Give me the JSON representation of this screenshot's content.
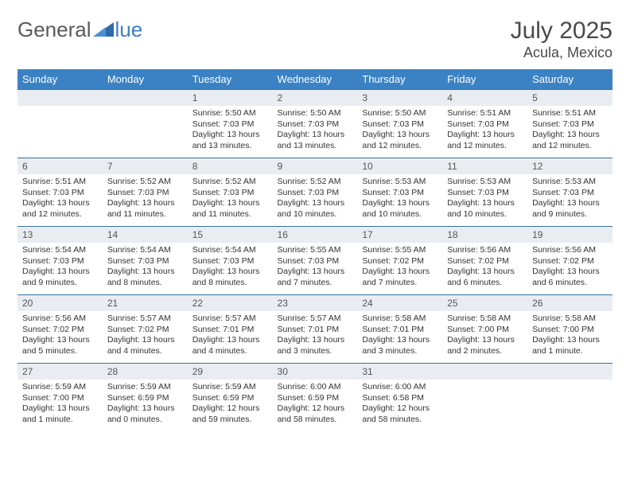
{
  "logo": {
    "text_general": "General",
    "text_blue": "lue"
  },
  "header": {
    "title": "July 2025",
    "location": "Acula, Mexico"
  },
  "colors": {
    "header_bg": "#3b82c4",
    "header_text": "#ffffff",
    "row_border": "#3b6fa0",
    "daynum_bg": "#e9edf1",
    "body_text": "#333333",
    "logo_gray": "#5a5a5a",
    "logo_blue": "#3b7fc4"
  },
  "calendar": {
    "day_labels": [
      "Sunday",
      "Monday",
      "Tuesday",
      "Wednesday",
      "Thursday",
      "Friday",
      "Saturday"
    ],
    "weeks": [
      [
        null,
        null,
        {
          "n": "1",
          "sr": "5:50 AM",
          "ss": "7:03 PM",
          "dl": "13 hours and 13 minutes."
        },
        {
          "n": "2",
          "sr": "5:50 AM",
          "ss": "7:03 PM",
          "dl": "13 hours and 13 minutes."
        },
        {
          "n": "3",
          "sr": "5:50 AM",
          "ss": "7:03 PM",
          "dl": "13 hours and 12 minutes."
        },
        {
          "n": "4",
          "sr": "5:51 AM",
          "ss": "7:03 PM",
          "dl": "13 hours and 12 minutes."
        },
        {
          "n": "5",
          "sr": "5:51 AM",
          "ss": "7:03 PM",
          "dl": "13 hours and 12 minutes."
        }
      ],
      [
        {
          "n": "6",
          "sr": "5:51 AM",
          "ss": "7:03 PM",
          "dl": "13 hours and 12 minutes."
        },
        {
          "n": "7",
          "sr": "5:52 AM",
          "ss": "7:03 PM",
          "dl": "13 hours and 11 minutes."
        },
        {
          "n": "8",
          "sr": "5:52 AM",
          "ss": "7:03 PM",
          "dl": "13 hours and 11 minutes."
        },
        {
          "n": "9",
          "sr": "5:52 AM",
          "ss": "7:03 PM",
          "dl": "13 hours and 10 minutes."
        },
        {
          "n": "10",
          "sr": "5:53 AM",
          "ss": "7:03 PM",
          "dl": "13 hours and 10 minutes."
        },
        {
          "n": "11",
          "sr": "5:53 AM",
          "ss": "7:03 PM",
          "dl": "13 hours and 10 minutes."
        },
        {
          "n": "12",
          "sr": "5:53 AM",
          "ss": "7:03 PM",
          "dl": "13 hours and 9 minutes."
        }
      ],
      [
        {
          "n": "13",
          "sr": "5:54 AM",
          "ss": "7:03 PM",
          "dl": "13 hours and 9 minutes."
        },
        {
          "n": "14",
          "sr": "5:54 AM",
          "ss": "7:03 PM",
          "dl": "13 hours and 8 minutes."
        },
        {
          "n": "15",
          "sr": "5:54 AM",
          "ss": "7:03 PM",
          "dl": "13 hours and 8 minutes."
        },
        {
          "n": "16",
          "sr": "5:55 AM",
          "ss": "7:03 PM",
          "dl": "13 hours and 7 minutes."
        },
        {
          "n": "17",
          "sr": "5:55 AM",
          "ss": "7:02 PM",
          "dl": "13 hours and 7 minutes."
        },
        {
          "n": "18",
          "sr": "5:56 AM",
          "ss": "7:02 PM",
          "dl": "13 hours and 6 minutes."
        },
        {
          "n": "19",
          "sr": "5:56 AM",
          "ss": "7:02 PM",
          "dl": "13 hours and 6 minutes."
        }
      ],
      [
        {
          "n": "20",
          "sr": "5:56 AM",
          "ss": "7:02 PM",
          "dl": "13 hours and 5 minutes."
        },
        {
          "n": "21",
          "sr": "5:57 AM",
          "ss": "7:02 PM",
          "dl": "13 hours and 4 minutes."
        },
        {
          "n": "22",
          "sr": "5:57 AM",
          "ss": "7:01 PM",
          "dl": "13 hours and 4 minutes."
        },
        {
          "n": "23",
          "sr": "5:57 AM",
          "ss": "7:01 PM",
          "dl": "13 hours and 3 minutes."
        },
        {
          "n": "24",
          "sr": "5:58 AM",
          "ss": "7:01 PM",
          "dl": "13 hours and 3 minutes."
        },
        {
          "n": "25",
          "sr": "5:58 AM",
          "ss": "7:00 PM",
          "dl": "13 hours and 2 minutes."
        },
        {
          "n": "26",
          "sr": "5:58 AM",
          "ss": "7:00 PM",
          "dl": "13 hours and 1 minute."
        }
      ],
      [
        {
          "n": "27",
          "sr": "5:59 AM",
          "ss": "7:00 PM",
          "dl": "13 hours and 1 minute."
        },
        {
          "n": "28",
          "sr": "5:59 AM",
          "ss": "6:59 PM",
          "dl": "13 hours and 0 minutes."
        },
        {
          "n": "29",
          "sr": "5:59 AM",
          "ss": "6:59 PM",
          "dl": "12 hours and 59 minutes."
        },
        {
          "n": "30",
          "sr": "6:00 AM",
          "ss": "6:59 PM",
          "dl": "12 hours and 58 minutes."
        },
        {
          "n": "31",
          "sr": "6:00 AM",
          "ss": "6:58 PM",
          "dl": "12 hours and 58 minutes."
        },
        null,
        null
      ]
    ],
    "labels": {
      "sunrise_prefix": "Sunrise: ",
      "sunset_prefix": "Sunset: ",
      "daylight_prefix": "Daylight: "
    }
  }
}
